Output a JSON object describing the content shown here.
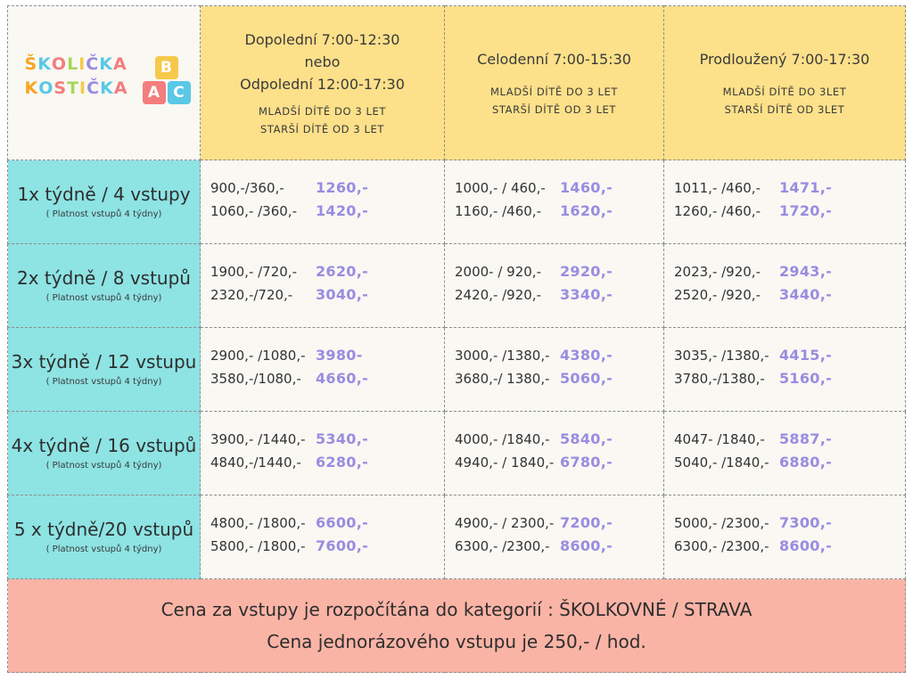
{
  "logo": {
    "line1": [
      "Š",
      "K",
      "O",
      "L",
      "I",
      "Č",
      "K",
      "A"
    ],
    "line2": [
      "K",
      "O",
      "S",
      "T",
      "I",
      "Č",
      "K",
      "A"
    ],
    "letter_colors": [
      "#f6a623",
      "#5ac8e6",
      "#f47d7d",
      "#a7d65a",
      "#f6c94a",
      "#9a8ce0",
      "#5ac8e6",
      "#f47d7d"
    ],
    "blocks": [
      {
        "letter": "B",
        "color": "#f6c94a"
      },
      {
        "letter": "A",
        "color": "#f47d7d"
      },
      {
        "letter": "C",
        "color": "#5ac8e6"
      }
    ]
  },
  "columns": [
    {
      "main": [
        "Dopolední 7:00-12:30",
        "nebo",
        "Odpolední 12:00-17:30"
      ],
      "sub": [
        "MLADŠÍ DÍTĚ DO 3 LET",
        "STARŠÍ DÍTĚ OD 3 LET"
      ]
    },
    {
      "main": [
        "Celodenní 7:00-15:30"
      ],
      "sub": [
        "MLADŠÍ DÍTĚ DO 3 LET",
        "STARŠÍ DÍTĚ OD 3 LET"
      ]
    },
    {
      "main": [
        "Prodloužený 7:00-17:30"
      ],
      "sub": [
        "MLADŠÍ DÍTĚ DO 3LET",
        "STARŠÍ DÍTĚ OD 3LET"
      ]
    }
  ],
  "rows": [
    {
      "title": "1x týdně / 4 vstupy",
      "subtitle": "( Platnost vstupů 4 týdny)",
      "cells": [
        [
          {
            "base": "900,-/360,-",
            "total": "1260,-"
          },
          {
            "base": "1060,-  /360,-",
            "total": "1420,-"
          }
        ],
        [
          {
            "base": "1000,- / 460,-",
            "total": "1460,-"
          },
          {
            "base": "1160,- /460,-",
            "total": "1620,-"
          }
        ],
        [
          {
            "base": "1011,- /460,-",
            "total": "1471,-"
          },
          {
            "base": "1260,- /460,-",
            "total": "1720,-"
          }
        ]
      ]
    },
    {
      "title": "2x týdně / 8 vstupů",
      "subtitle": "( Platnost vstupů 4 týdny)",
      "cells": [
        [
          {
            "base": "1900,- /720,-",
            "total": "2620,-"
          },
          {
            "base": "2320,-/720,-",
            "total": "3040,-"
          }
        ],
        [
          {
            "base": "2000- / 920,-",
            "total": "2920,-"
          },
          {
            "base": "2420,- /920,-",
            "total": "3340,-"
          }
        ],
        [
          {
            "base": "2023,- /920,-",
            "total": "2943,-"
          },
          {
            "base": "2520,- /920,-",
            "total": "3440,-"
          }
        ]
      ]
    },
    {
      "title": "3x týdně / 12 vstupu",
      "subtitle": "( Platnost vstupů 4 týdny)",
      "cells": [
        [
          {
            "base": "2900,- /1080,-",
            "total": "3980-"
          },
          {
            "base": "3580,-/1080,-",
            "total": "4660,-"
          }
        ],
        [
          {
            "base": "3000,- /1380,-",
            "total": "4380,-"
          },
          {
            "base": "3680,-/ 1380,-",
            "total": "5060,-"
          }
        ],
        [
          {
            "base": "3035,- /1380,-",
            "total": "4415,-"
          },
          {
            "base": "3780,-/1380,-",
            "total": "5160,-"
          }
        ]
      ]
    },
    {
      "title": "4x týdně / 16 vstupů",
      "subtitle": "( Platnost vstupů 4 týdny)",
      "cells": [
        [
          {
            "base": "3900,- /1440,-",
            "total": "5340,-"
          },
          {
            "base": "4840,-/1440,-",
            "total": "6280,-"
          }
        ],
        [
          {
            "base": "4000,- /1840,-",
            "total": "5840,-"
          },
          {
            "base": "4940,- / 1840,-",
            "total": "6780,-"
          }
        ],
        [
          {
            "base": "4047- /1840,-",
            "total": "5887,-"
          },
          {
            "base": "5040,- /1840,-",
            "total": "6880,-"
          }
        ]
      ]
    },
    {
      "title": "5 x týdně/20 vstupů",
      "subtitle": "( Platnost vstupů 4 týdny)",
      "cells": [
        [
          {
            "base": "4800,- /1800,-",
            "total": "6600,-"
          },
          {
            "base": "5800,- /1800,-",
            "total": "7600,-"
          }
        ],
        [
          {
            "base": "4900,- / 2300,-",
            "total": "7200,-"
          },
          {
            "base": "6300,- /2300,-",
            "total": "8600,-"
          }
        ],
        [
          {
            "base": "5000,- /2300,-",
            "total": "7300,-"
          },
          {
            "base": "6300,- /2300,-",
            "total": "8600,-"
          }
        ]
      ]
    }
  ],
  "footer": {
    "line1": "Cena za vstupy je rozpočítána do kategorií : ŠKOLKOVNÉ / STRAVA",
    "line2": "Cena jednorázového vstupu je 250,- / hod."
  },
  "colors": {
    "header_bg": "#fde08a",
    "row_header_bg": "#8ee3e3",
    "cell_bg": "#f9f8f3",
    "footer_bg": "#fab4a6",
    "total_text": "#9a8ce0"
  }
}
